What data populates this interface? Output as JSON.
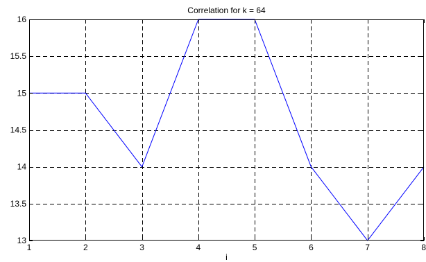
{
  "chart_data": {
    "type": "line",
    "title": "Correlation for k = 64",
    "xlabel": "i",
    "ylabel": "",
    "xlim": [
      1,
      8
    ],
    "ylim": [
      13,
      16
    ],
    "xticks": [
      "1",
      "2",
      "3",
      "4",
      "5",
      "6",
      "7",
      "8"
    ],
    "yticks": [
      "13",
      "13.5",
      "14",
      "14.5",
      "15",
      "15.5",
      "16"
    ],
    "grid": true,
    "grid_style": "dashed",
    "series": [
      {
        "color": "#0000ff",
        "x": [
          1,
          2,
          3,
          4,
          5,
          6,
          7,
          8
        ],
        "y": [
          15,
          15,
          14,
          16,
          16,
          14,
          13,
          14
        ]
      }
    ]
  }
}
